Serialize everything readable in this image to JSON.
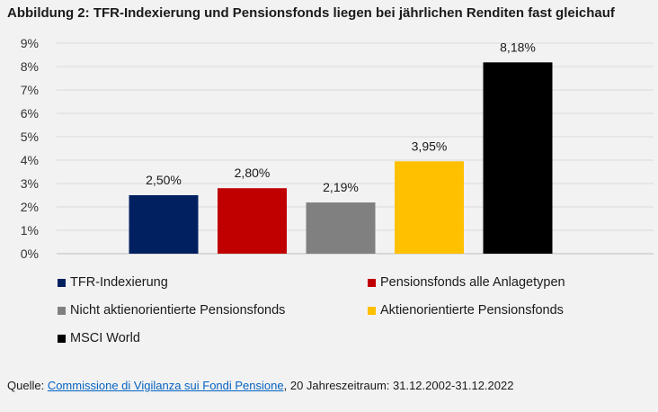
{
  "title": "Abbildung 2: TFR-Indexierung und Pensionsfonds liegen bei jährlichen Renditen fast gleichauf",
  "chart_data": {
    "type": "bar",
    "title": "Abbildung 2: TFR-Indexierung und Pensionsfonds liegen bei jährlichen Renditen fast gleichauf",
    "xlabel": "",
    "ylabel": "",
    "ylim": [
      0,
      9
    ],
    "y_ticks": [
      "0%",
      "1%",
      "2%",
      "3%",
      "4%",
      "5%",
      "6%",
      "7%",
      "8%",
      "9%"
    ],
    "grid": true,
    "legend_position": "bottom",
    "series": [
      {
        "name": "TFR-Indexierung",
        "value": 2.5,
        "label": "2,50%",
        "color": "#002060"
      },
      {
        "name": "Pensionsfonds alle Anlagetypen",
        "value": 2.8,
        "label": "2,80%",
        "color": "#c00000"
      },
      {
        "name": "Nicht aktienorientierte Pensionsfonds",
        "value": 2.19,
        "label": "2,19%",
        "color": "#808080"
      },
      {
        "name": "Aktienorientierte Pensionsfonds",
        "value": 3.95,
        "label": "3,95%",
        "color": "#ffc000"
      },
      {
        "name": "MSCI World",
        "value": 8.18,
        "label": "8,18%",
        "color": "#000000"
      }
    ]
  },
  "footer": {
    "prefix": "Quelle: ",
    "link_text": "Commissione di Vigilanza sui Fondi Pensione",
    "suffix": ", 20 Jahreszeitraum: 31.12.2002-31.12.2022"
  }
}
